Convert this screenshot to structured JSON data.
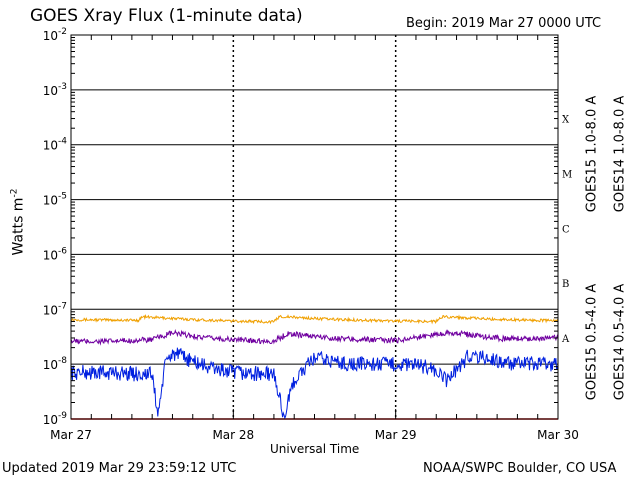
{
  "header": {
    "title": "GOES Xray Flux (1-minute data)",
    "begin": "Begin:  2019 Mar 27 0000 UTC"
  },
  "footer": {
    "updated": "Updated 2019 Mar 29 23:59:12 UTC",
    "source": "NOAA/SWPC Boulder, CO USA"
  },
  "chart_data": {
    "type": "line",
    "title": "GOES Xray Flux (1-minute data)",
    "xlabel": "Universal Time",
    "ylabel": "Watts m",
    "ylabel_sup": "-2",
    "yscale": "log",
    "ylim": [
      1e-09,
      0.01
    ],
    "xlim": [
      "2019-03-27",
      "2019-03-30"
    ],
    "x_ticks": [
      "Mar 27",
      "Mar 28",
      "Mar 29",
      "Mar 30"
    ],
    "y_ticks": [
      {
        "value": 1e-09,
        "label": "10",
        "exp": "-9"
      },
      {
        "value": 1e-08,
        "label": "10",
        "exp": "-8"
      },
      {
        "value": 1e-07,
        "label": "10",
        "exp": "-7"
      },
      {
        "value": 1e-06,
        "label": "10",
        "exp": "-6"
      },
      {
        "value": 1e-05,
        "label": "10",
        "exp": "-5"
      },
      {
        "value": 0.0001,
        "label": "10",
        "exp": "-4"
      },
      {
        "value": 0.001,
        "label": "10",
        "exp": "-3"
      },
      {
        "value": 0.01,
        "label": "10",
        "exp": "-2"
      }
    ],
    "flare_classes": [
      {
        "label": "X",
        "value": 0.0003
      },
      {
        "label": "M",
        "value": 3e-05
      },
      {
        "label": "C",
        "value": 3e-06
      },
      {
        "label": "B",
        "value": 3e-07
      },
      {
        "label": "A",
        "value": 3e-08
      }
    ],
    "grid": true,
    "legend_position": "right",
    "series": [
      {
        "name": "GOES15 1.0-8.0 A",
        "color": "#e00000",
        "points": [
          [
            "2019-03-27 00:00",
            1e-09
          ],
          [
            "2019-03-30 00:00",
            1e-09
          ]
        ]
      },
      {
        "name": "GOES14 1.0-8.0 A",
        "color": "#f0a000",
        "points": [
          [
            "2019-03-27 00:00",
            6.5e-08
          ],
          [
            "2019-03-27 10:00",
            6.3e-08
          ],
          [
            "2019-03-27 10:30",
            7.3e-08
          ],
          [
            "2019-03-27 18:00",
            6.5e-08
          ],
          [
            "2019-03-28 00:00",
            6.1e-08
          ],
          [
            "2019-03-28 06:00",
            5.9e-08
          ],
          [
            "2019-03-28 06:50",
            7.4e-08
          ],
          [
            "2019-03-28 14:00",
            6.6e-08
          ],
          [
            "2019-03-29 00:00",
            6.1e-08
          ],
          [
            "2019-03-29 06:00",
            6e-08
          ],
          [
            "2019-03-29 07:00",
            7.4e-08
          ],
          [
            "2019-03-29 14:00",
            6.6e-08
          ],
          [
            "2019-03-30 00:00",
            6.2e-08
          ]
        ]
      },
      {
        "name": "GOES15 0.5-4.0 A",
        "color": "#0020e0",
        "points": [
          [
            "2019-03-27 00:00",
            7e-09
          ],
          [
            "2019-03-27 06:00",
            7e-09
          ],
          [
            "2019-03-27 12:00",
            6.5e-09
          ],
          [
            "2019-03-27 12:50",
            1.2e-09
          ],
          [
            "2019-03-27 14:00",
            1.1e-08
          ],
          [
            "2019-03-27 15:00",
            1.6e-08
          ],
          [
            "2019-03-27 20:00",
            9e-09
          ],
          [
            "2019-03-28 00:00",
            7e-09
          ],
          [
            "2019-03-28 06:00",
            6.5e-09
          ],
          [
            "2019-03-28 07:30",
            1.1e-09
          ],
          [
            "2019-03-28 09:00",
            5e-09
          ],
          [
            "2019-03-28 12:00",
            1.3e-08
          ],
          [
            "2019-03-28 17:00",
            1e-08
          ],
          [
            "2019-03-29 00:00",
            1e-08
          ],
          [
            "2019-03-29 05:00",
            9e-09
          ],
          [
            "2019-03-29 07:30",
            5e-09
          ],
          [
            "2019-03-29 11:00",
            1.5e-08
          ],
          [
            "2019-03-29 17:00",
            1e-08
          ],
          [
            "2019-03-30 00:00",
            1e-08
          ]
        ]
      },
      {
        "name": "GOES14 0.5-4.0 A",
        "color": "#7000a0",
        "points": [
          [
            "2019-03-27 00:00",
            2.6e-08
          ],
          [
            "2019-03-27 06:00",
            2.6e-08
          ],
          [
            "2019-03-27 12:00",
            2.8e-08
          ],
          [
            "2019-03-27 15:00",
            3.7e-08
          ],
          [
            "2019-03-27 20:00",
            3e-08
          ],
          [
            "2019-03-28 00:00",
            2.8e-08
          ],
          [
            "2019-03-28 06:00",
            2.6e-08
          ],
          [
            "2019-03-28 08:00",
            3.6e-08
          ],
          [
            "2019-03-28 16:00",
            2.9e-08
          ],
          [
            "2019-03-29 00:00",
            2.7e-08
          ],
          [
            "2019-03-29 08:00",
            3.8e-08
          ],
          [
            "2019-03-29 16:00",
            2.9e-08
          ],
          [
            "2019-03-30 00:00",
            3e-08
          ]
        ]
      }
    ]
  }
}
